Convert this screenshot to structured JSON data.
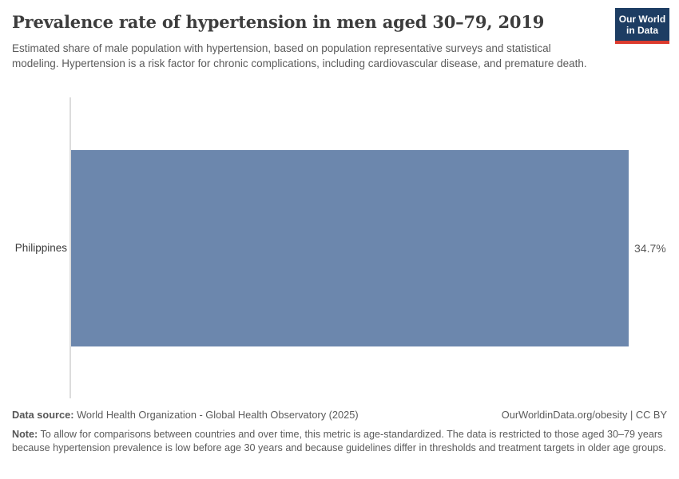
{
  "header": {
    "title": "Prevalence rate of hypertension in men aged 30–79, 2019",
    "subtitle": "Estimated share of male population with hypertension, based on population representative surveys and statistical modeling. Hypertension is a risk factor for chronic complications, including cardiovascular disease, and premature death.",
    "logo": {
      "line1": "Our World",
      "line2": "in Data",
      "bg_color": "#1d3d63",
      "stripe_color": "#dc3b2e"
    }
  },
  "chart_data": {
    "type": "bar",
    "orientation": "horizontal",
    "categories": [
      "Philippines"
    ],
    "values": [
      34.7
    ],
    "value_labels": [
      "34.7%"
    ],
    "unit": "%",
    "xmax": 34.7,
    "bar_color": "#6c87ad",
    "axis_line_color": "#dcdcdc",
    "title": "Prevalence rate of hypertension in men aged 30–79, 2019",
    "xlabel": "",
    "ylabel": "",
    "grid": false,
    "legend": false
  },
  "footer": {
    "datasource_label": "Data source:",
    "datasource_text": " World Health Organization - Global Health Observatory (2025)",
    "citation": "OurWorldinData.org/obesity | CC BY",
    "note_label": "Note:",
    "note_text": " To allow for comparisons between countries and over time, this metric is age-standardized. The data is restricted to those aged 30–79 years because hypertension prevalence is low before age 30 years and because guidelines differ in thresholds and treatment targets in older age groups."
  }
}
